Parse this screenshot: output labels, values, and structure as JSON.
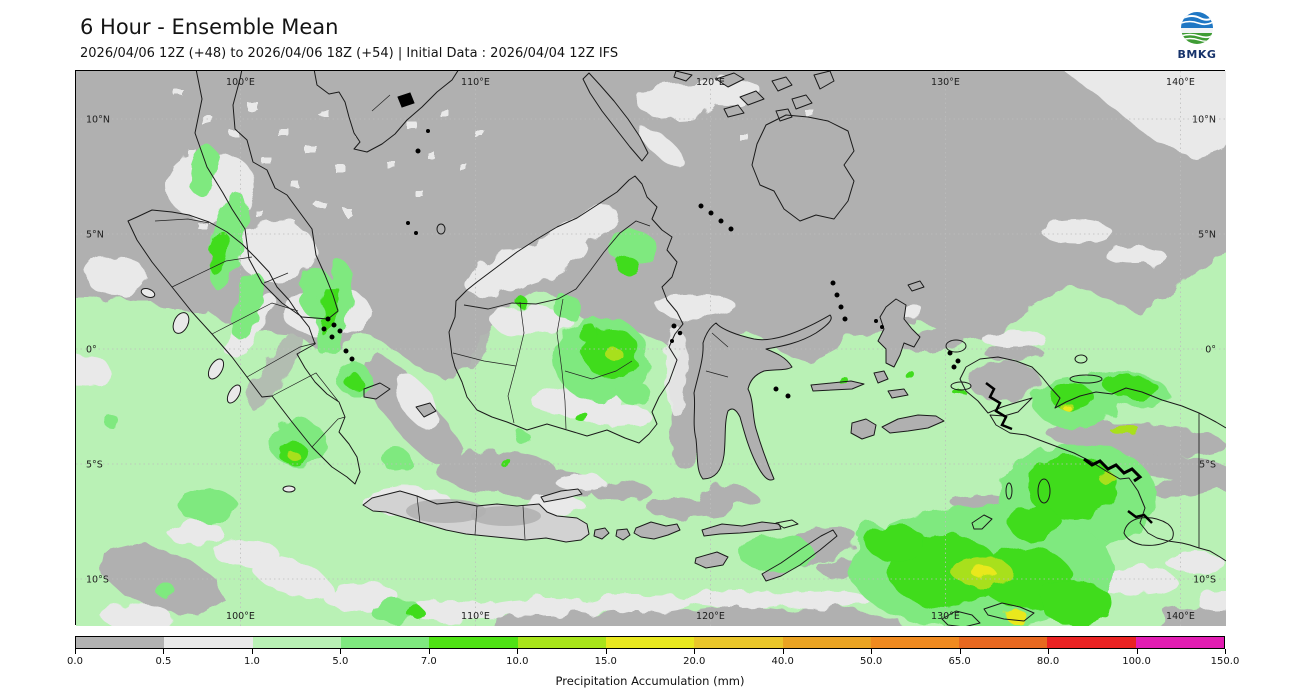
{
  "header": {
    "title": "6 Hour - Ensemble Mean",
    "subtitle": "2026/04/06 12Z (+48) to 2026/04/06 18Z (+54) | Initial Data : 2026/04/04 12Z IFS",
    "logo_text": "BMKG"
  },
  "map": {
    "lon_labels": [
      "100°E",
      "110°E",
      "120°E",
      "130°E",
      "140°E"
    ],
    "lon_x": [
      164.5,
      399.5,
      634.5,
      869.5,
      1104.5
    ],
    "lat_labels": [
      "10°N",
      "5°N",
      "0°",
      "5°S",
      "10°S"
    ],
    "lat_y": [
      48,
      163,
      278,
      393,
      508
    ]
  },
  "colorbar": {
    "title": "Precipitation Accumulation (mm)",
    "tick_labels": [
      "0.0",
      "0.5",
      "1.0",
      "5.0",
      "7.0",
      "10.0",
      "15.0",
      "20.0",
      "40.0",
      "50.0",
      "65.0",
      "80.0",
      "100.0",
      "150.0"
    ],
    "segment_colors": [
      "#b2b2b2",
      "#e9e9e9",
      "#b9f1b5",
      "#7fe97f",
      "#4fe214",
      "#a8e41a",
      "#e9e81f",
      "#eac62a",
      "#eaa322",
      "#f08a1f",
      "#e8681f",
      "#ea2222",
      "#e21cb2"
    ]
  },
  "chart_data": {
    "type": "heatmap",
    "title": "6 Hour - Ensemble Mean",
    "variable": "Precipitation Accumulation (mm)",
    "region": "Maritime Continent / Indonesia",
    "lon_range": [
      "93°E",
      "142°E"
    ],
    "lat_range": [
      "12°S",
      "12°N"
    ],
    "levels_mm": [
      0.0,
      0.5,
      1.0,
      5.0,
      7.0,
      10.0,
      15.0,
      20.0,
      40.0,
      50.0,
      65.0,
      80.0,
      100.0,
      150.0
    ],
    "level_colors": [
      "#b2b2b2",
      "#e9e9e9",
      "#b9f1b5",
      "#7fe97f",
      "#4fe214",
      "#a8e41a",
      "#e9e81f",
      "#eac62a",
      "#eaa322",
      "#f08a1f",
      "#e8681f",
      "#ea2222",
      "#e21cb2"
    ],
    "notable_features": [
      "0-0.5 mm (gray) over South China Sea, Celebes Sea, Philippines, Sulawesi, Java",
      "1-5 mm (pale green) over Indian Ocean, Java Sea, Banda Sea, Papua",
      "7-15 mm cores over central-east Borneo, west Sumatra coast, south Sumatra, Cenderawasih Bay and south Papua",
      "15-20 mm local maxima in Banda/Arafura Sea near 130°E 10°S"
    ]
  }
}
